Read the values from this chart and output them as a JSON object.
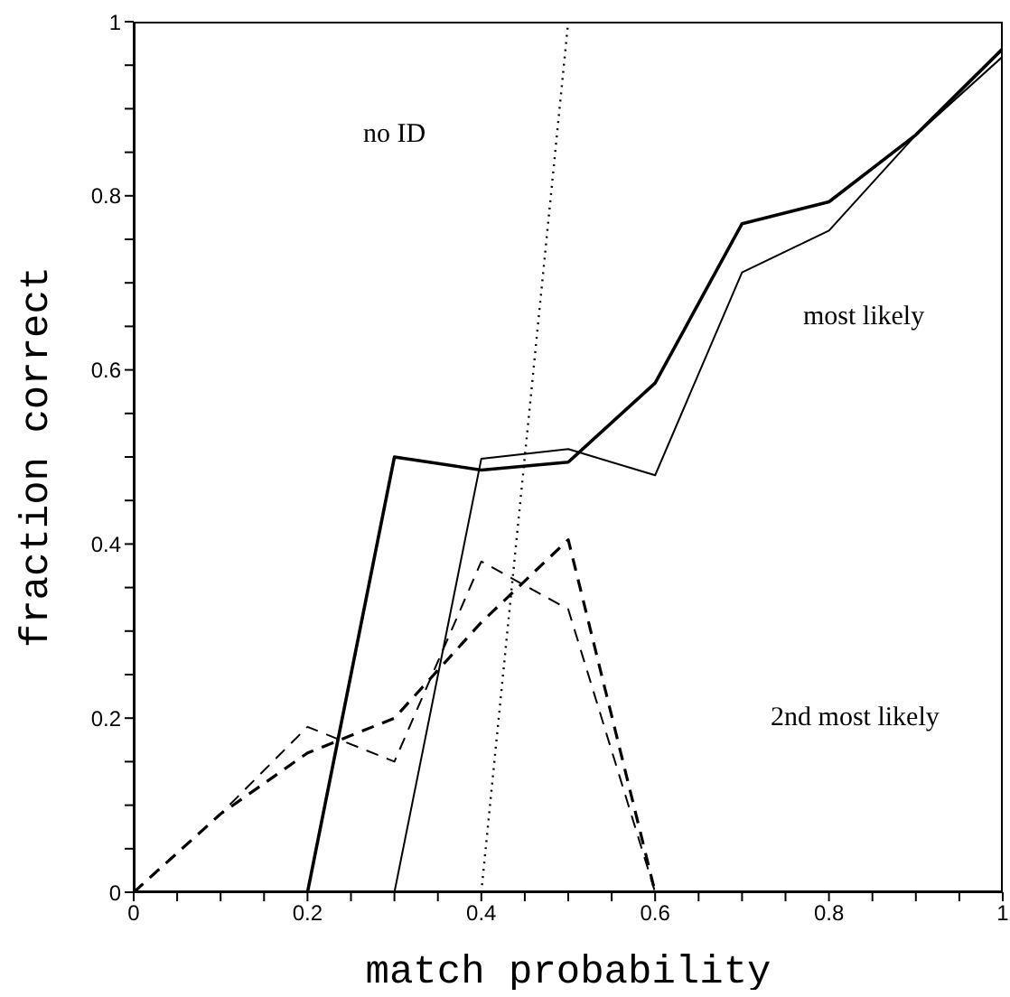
{
  "chart_data": {
    "type": "line",
    "xlabel": "match probability",
    "ylabel": "fraction correct",
    "series": [
      {
        "color": "#000000",
        "line_style": "solid",
        "x": [
          0,
          0.1,
          0.2,
          0.3,
          0.4,
          0.5,
          0.6,
          0.7,
          0.8,
          0.9,
          1.0
        ],
        "values": [
          0,
          0,
          0,
          0.5,
          0.485,
          0.494,
          0.585,
          0.768,
          0.793,
          0.87,
          0.969
        ]
      },
      {
        "color": "#000000",
        "line_style": "solid",
        "x": [
          0,
          0.1,
          0.2,
          0.3,
          0.4,
          0.5,
          0.6,
          0.7,
          0.8,
          0.9,
          1.0
        ],
        "values": [
          0,
          0,
          0,
          0,
          0.498,
          0.509,
          0.479,
          0.712,
          0.76,
          0.87,
          0.96
        ]
      },
      {
        "color": "#000000",
        "line_style": "dashed",
        "x": [
          0,
          0.1,
          0.2,
          0.3,
          0.4,
          0.5,
          0.6
        ],
        "values": [
          0,
          0.09,
          0.16,
          0.2,
          0.31,
          0.405,
          0
        ]
      },
      {
        "color": "#000000",
        "line_style": "dashed",
        "x": [
          0,
          0.1,
          0.2,
          0.3,
          0.4,
          0.5,
          0.6
        ],
        "values": [
          0,
          0.09,
          0.19,
          0.15,
          0.38,
          0.325,
          0
        ]
      },
      {
        "color": "#000000",
        "line_style": "dotted",
        "x": [
          0.4,
          0.5,
          0.6,
          0.7,
          0.8,
          0.9,
          1.0
        ],
        "values": [
          0,
          1,
          1,
          1,
          1,
          1,
          1
        ]
      }
    ],
    "annotations": [
      "no ID",
      "most likely",
      "2nd most likely"
    ],
    "xlim": [
      0,
      1
    ],
    "ylim": [
      0,
      1
    ],
    "xticks": [
      0,
      {
        "value": 0.05,
        "label": null
      },
      {
        "value": 0.1,
        "label": null
      },
      {
        "value": 0.15,
        "label": null
      },
      0.2,
      {
        "value": 0.25,
        "label": null
      },
      {
        "value": 0.3,
        "label": null
      },
      {
        "value": 0.35,
        "label": null
      },
      0.4,
      {
        "value": 0.45,
        "label": null
      },
      {
        "value": 0.5,
        "label": null
      },
      {
        "value": 0.55,
        "label": null
      },
      0.6,
      {
        "value": 0.65,
        "label": null
      },
      {
        "value": 0.7,
        "label": null
      },
      {
        "value": 0.75,
        "label": null
      },
      0.8,
      {
        "value": 0.85,
        "label": null
      },
      {
        "value": 0.9,
        "label": null
      },
      {
        "value": 0.95,
        "label": null
      },
      1
    ],
    "yticks": [
      0,
      {
        "value": 0.05,
        "label": null
      },
      {
        "value": 0.1,
        "label": null
      },
      {
        "value": 0.15,
        "label": null
      },
      0.2,
      {
        "value": 0.25,
        "label": null
      },
      {
        "value": 0.3,
        "label": null
      },
      {
        "value": 0.35,
        "label": null
      },
      0.4,
      {
        "value": 0.45,
        "label": null
      },
      {
        "value": 0.5,
        "label": null
      },
      {
        "value": 0.55,
        "label": null
      },
      0.6,
      {
        "value": 0.65,
        "label": null
      },
      {
        "value": 0.7,
        "label": null
      },
      {
        "value": 0.75,
        "label": null
      },
      0.8,
      {
        "value": 0.85,
        "label": null
      },
      {
        "value": 0.9,
        "label": null
      },
      {
        "value": 0.95,
        "label": null
      },
      1
    ],
    "grid": false,
    "legend": false,
    "marker": "none"
  }
}
